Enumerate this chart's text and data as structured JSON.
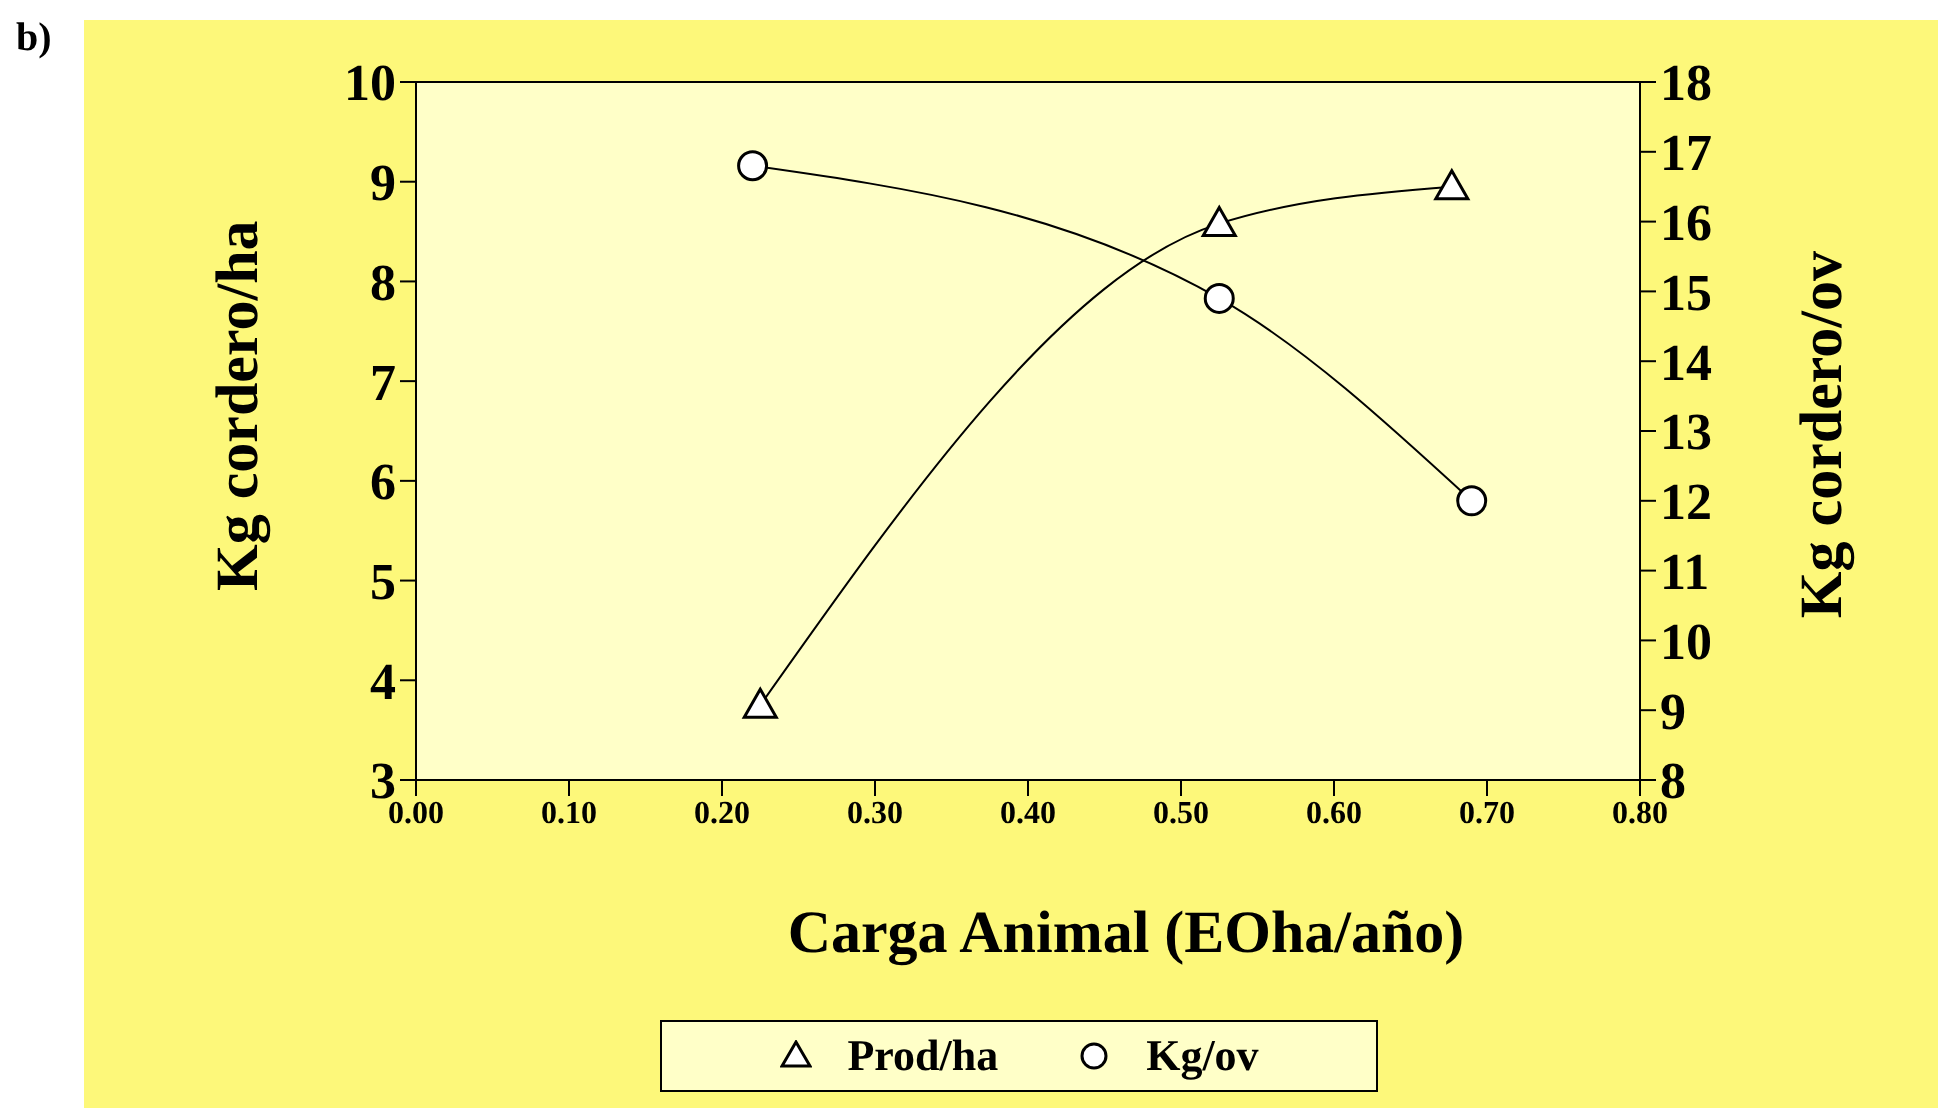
{
  "chart_data": {
    "type": "line",
    "title": "b)",
    "xlabel": "Carga Animal (EOha/año)",
    "ylabel": "Kg cordero/ha",
    "y2label": "Kg cordero/ov",
    "xlim": [
      0,
      0.8
    ],
    "xticks": [
      {
        "value": 0,
        "label": "0.00"
      },
      {
        "value": 0.1,
        "label": "0.10"
      },
      {
        "value": 0.2,
        "label": "0.20"
      },
      {
        "value": 0.3,
        "label": "0.30"
      },
      {
        "value": 0.4,
        "label": "0.40"
      },
      {
        "value": 0.5,
        "label": "0.50"
      },
      {
        "value": 0.6,
        "label": "0.60"
      },
      {
        "value": 0.7,
        "label": "0.70"
      },
      {
        "value": 0.8,
        "label": "0.80"
      }
    ],
    "ylim": [
      3,
      10
    ],
    "yticks": [
      3,
      4,
      5,
      6,
      7,
      8,
      9,
      10
    ],
    "y2lim": [
      8,
      18
    ],
    "y2ticks": [
      8,
      9,
      10,
      11,
      12,
      13,
      14,
      15,
      16,
      17,
      18
    ],
    "grid": false,
    "legend": "bottom",
    "series": [
      {
        "name": "Prod/ha",
        "color": "#000000",
        "marker": "triangle",
        "x": [
          0.225,
          0.525,
          0.677
        ],
        "values": [
          3.75,
          8.58,
          8.95
        ]
      },
      {
        "name": "Kg/ov",
        "color": "#000000",
        "marker": "circle",
        "axis": "y2",
        "x": [
          0.22,
          0.525,
          0.69
        ],
        "values": [
          16.8,
          14.9,
          12.0
        ]
      }
    ]
  }
}
